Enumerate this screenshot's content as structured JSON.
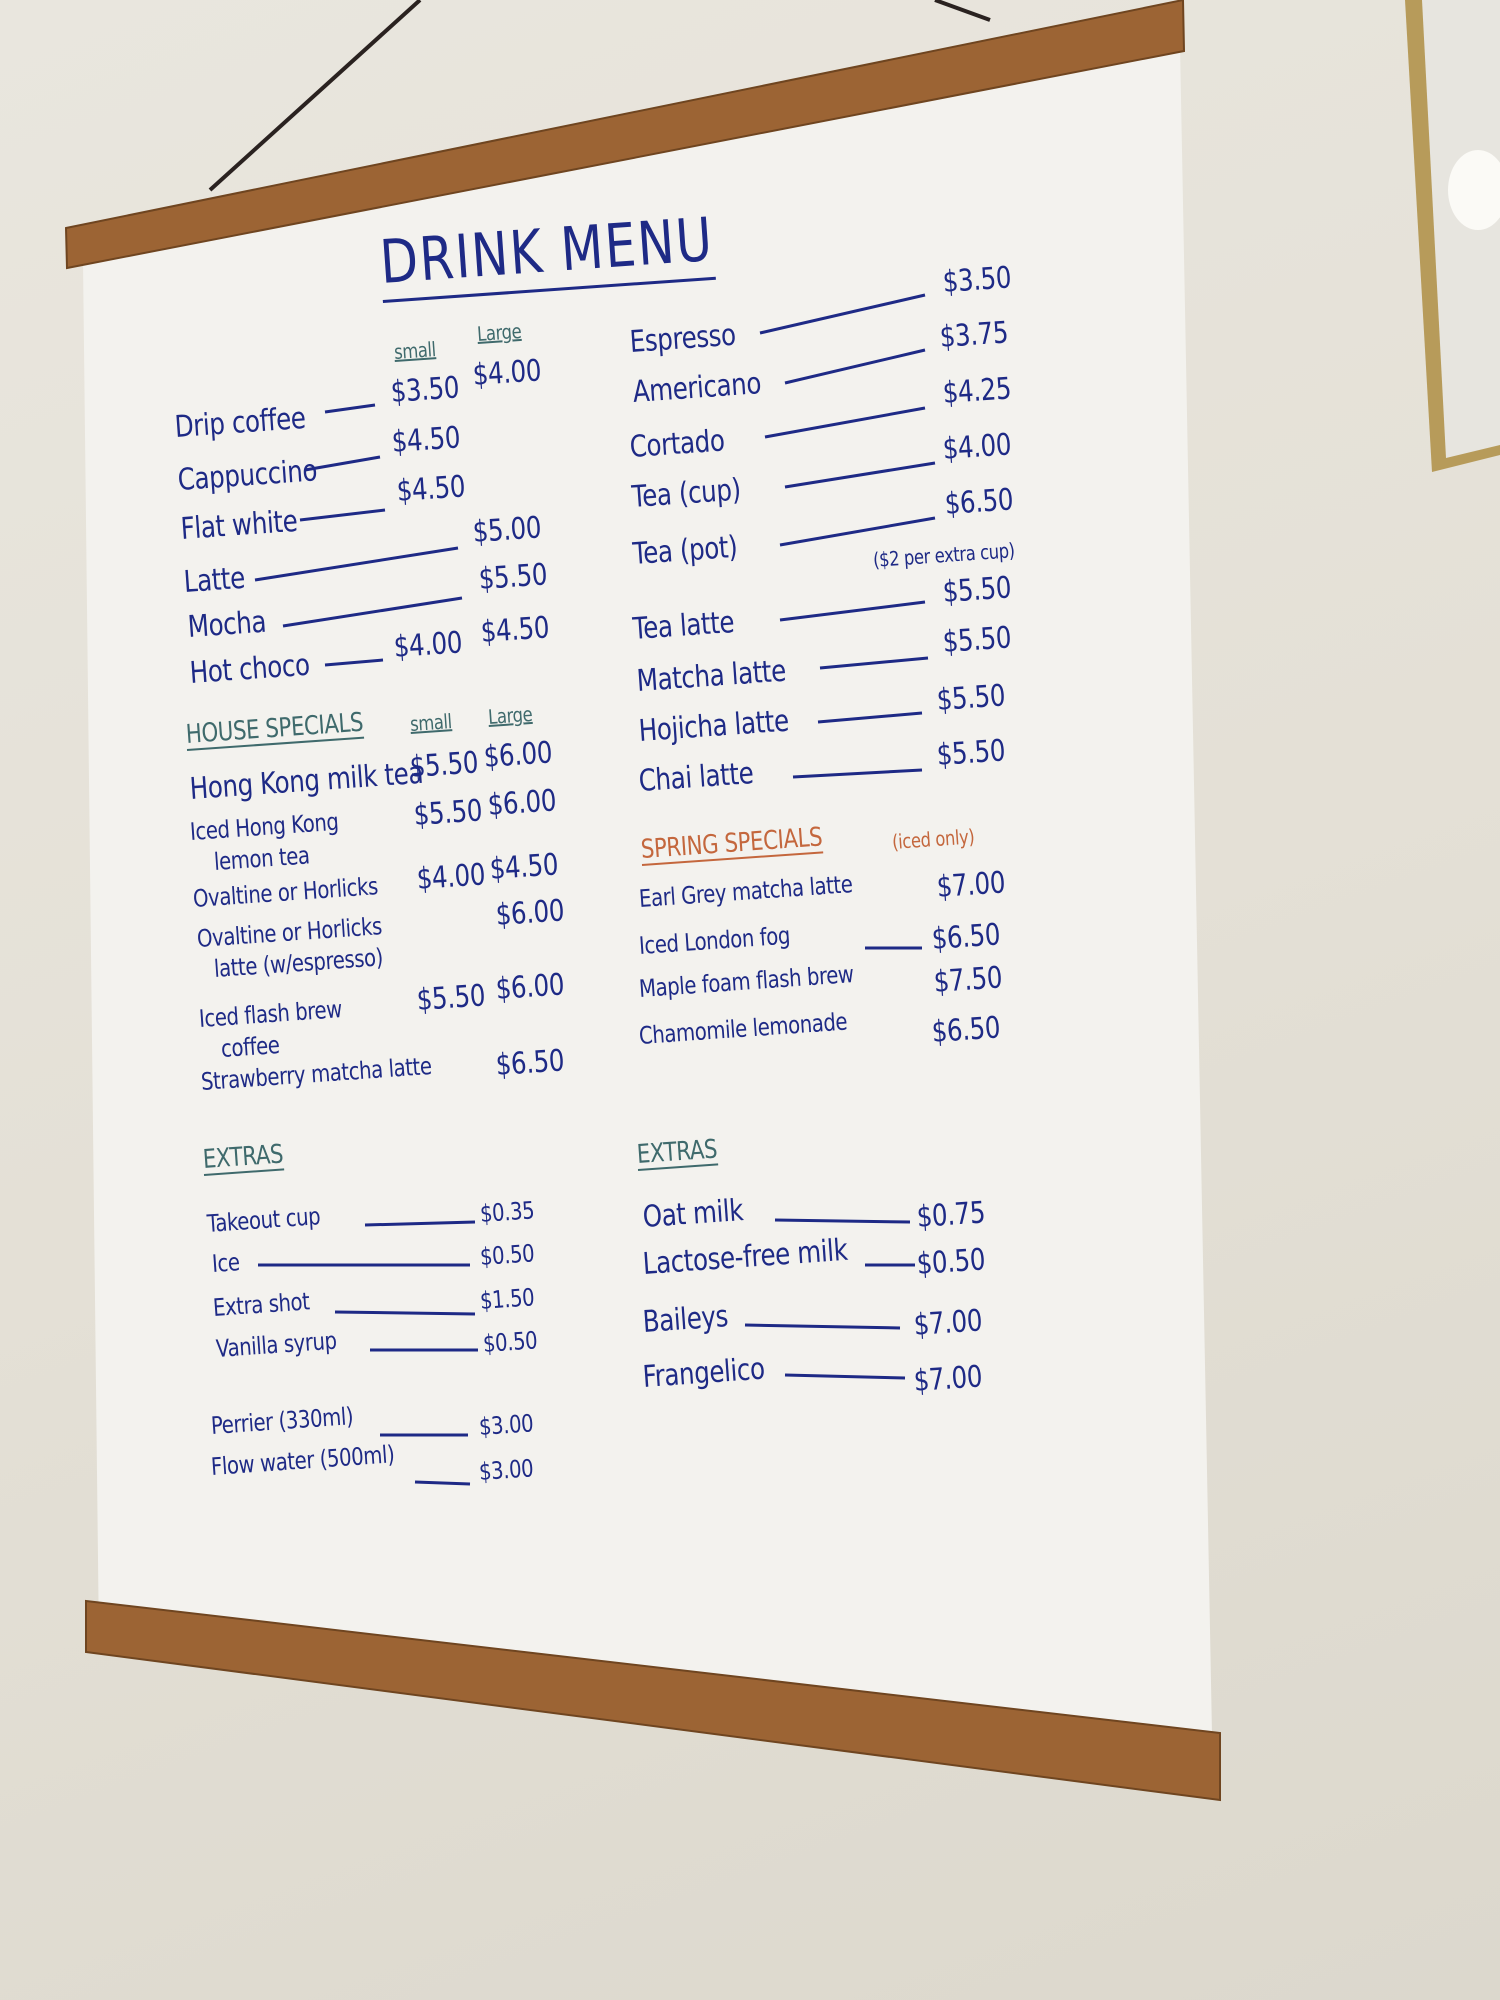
{
  "title": "DRINK MENU",
  "left": {
    "size_labels": {
      "small": "small",
      "large": "Large"
    },
    "coffee": [
      {
        "name": "Drip coffee",
        "small": "$3.50",
        "large": "$4.00"
      },
      {
        "name": "Cappuccino",
        "small": "$4.50"
      },
      {
        "name": "Flat white",
        "small": "$4.50"
      },
      {
        "name": "Latte",
        "large": "$5.00"
      },
      {
        "name": "Mocha",
        "large": "$5.50"
      },
      {
        "name": "Hot choco",
        "small": "$4.00",
        "large": "$4.50"
      }
    ],
    "house_specials": {
      "heading": "HOUSE SPECIALS",
      "small_label": "small",
      "large_label": "Large",
      "items": [
        {
          "name": "Hong Kong milk tea",
          "small": "$5.50",
          "large": "$6.00"
        },
        {
          "name": "Iced Hong Kong",
          "name2": "lemon tea",
          "small": "$5.50",
          "large": "$6.00"
        },
        {
          "name": "Ovaltine or Horlicks",
          "small": "$4.00",
          "large": "$4.50"
        },
        {
          "name": "Ovaltine or Horlicks",
          "name2": "latte (w/espresso)",
          "large": "$6.00"
        },
        {
          "name": "Iced flash brew",
          "name2": "coffee",
          "small": "$5.50",
          "large": "$6.00"
        },
        {
          "name": "Strawberry matcha latte",
          "large": "$6.50"
        }
      ]
    },
    "extras": {
      "heading": "EXTRAS",
      "items": [
        {
          "name": "Takeout cup",
          "price": "$0.35"
        },
        {
          "name": "Ice",
          "price": "$0.50"
        },
        {
          "name": "Extra shot",
          "price": "$1.50"
        },
        {
          "name": "Vanilla syrup",
          "price": "$0.50"
        },
        {
          "name": "Perrier (330ml)",
          "price": "$3.00"
        },
        {
          "name": "Flow water (500ml)",
          "price": "$3.00"
        }
      ]
    }
  },
  "right": {
    "drinks": [
      {
        "name": "Espresso",
        "price": "$3.50"
      },
      {
        "name": "Americano",
        "price": "$3.75"
      },
      {
        "name": "Cortado",
        "price": "$4.25"
      },
      {
        "name": "Tea (cup)",
        "price": "$4.00"
      },
      {
        "name": "Tea (pot)",
        "price": "$6.50",
        "note": "($2 per extra cup)"
      },
      {
        "name": "Tea latte",
        "price": "$5.50"
      },
      {
        "name": "Matcha latte",
        "price": "$5.50"
      },
      {
        "name": "Hojicha latte",
        "price": "$5.50"
      },
      {
        "name": "Chai latte",
        "price": "$5.50"
      }
    ],
    "spring_specials": {
      "heading": "SPRING SPECIALS",
      "note": "(iced only)",
      "items": [
        {
          "name": "Earl Grey matcha latte",
          "price": "$7.00"
        },
        {
          "name": "Iced London fog",
          "price": "$6.50"
        },
        {
          "name": "Maple foam flash brew",
          "price": "$7.50"
        },
        {
          "name": "Chamomile lemonade",
          "price": "$6.50"
        }
      ]
    },
    "extras": {
      "heading": "EXTRAS",
      "items": [
        {
          "name": "Oat milk",
          "price": "$0.75"
        },
        {
          "name": "Lactose-free milk",
          "price": "$0.50"
        },
        {
          "name": "Baileys",
          "price": "$7.00"
        },
        {
          "name": "Frangelico",
          "price": "$7.00"
        }
      ]
    }
  },
  "colors": {
    "ink": "#1e2a86",
    "heading_ink": "#3f6a6c",
    "spring_ink": "#c4673d",
    "rod": "#9a6232",
    "paper": "#f4f3ef",
    "wall": "#e6e2d9"
  }
}
